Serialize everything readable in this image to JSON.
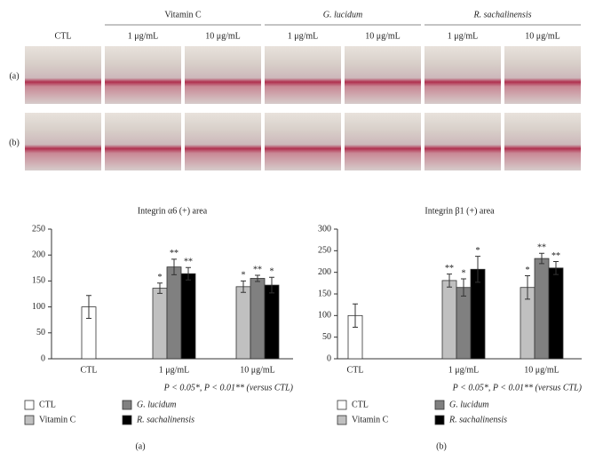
{
  "figure": {
    "groups": [
      "Vitamin C",
      "G. lucidum",
      "R. sachalinensis"
    ],
    "columns": [
      "CTL",
      "1 μg/mL",
      "10 μg/mL",
      "1 μg/mL",
      "10 μg/mL",
      "1 μg/mL",
      "10 μg/mL"
    ],
    "rows": [
      "(a)",
      "(b)"
    ]
  },
  "chart_data": [
    {
      "type": "bar",
      "title": "Integrin α6 (+) area",
      "panel": "(a)",
      "note": "P < 0.05*, P < 0.01** (versus CTL)",
      "categories": [
        "CTL",
        "1 μg/mL",
        "10 μg/mL"
      ],
      "ylim": [
        0,
        250
      ],
      "yticks": [
        0,
        50,
        100,
        150,
        200,
        250
      ],
      "series": [
        {
          "name": "CTL",
          "color": "#ffffff",
          "values": [
            100,
            null,
            null
          ],
          "errors": [
            22,
            null,
            null
          ],
          "stars": [
            null,
            null,
            null
          ]
        },
        {
          "name": "Vitamin C",
          "color": "#c0c0c0",
          "values": [
            null,
            136,
            139
          ],
          "errors": [
            null,
            10,
            11
          ],
          "stars": [
            null,
            "*",
            "*"
          ]
        },
        {
          "name": "G. lucidum",
          "color": "#808080",
          "values": [
            null,
            177,
            155
          ],
          "errors": [
            null,
            15,
            6
          ],
          "stars": [
            null,
            "**",
            "**"
          ]
        },
        {
          "name": "R. sachalinensis",
          "color": "#000000",
          "values": [
            null,
            164,
            142
          ],
          "errors": [
            null,
            12,
            15
          ],
          "stars": [
            null,
            "**",
            "*"
          ]
        }
      ]
    },
    {
      "type": "bar",
      "title": "Integrin β1 (+) area",
      "panel": "(b)",
      "note": "P < 0.05*, P < 0.01** (versus CTL)",
      "categories": [
        "CTL",
        "1 μg/mL",
        "10 μg/mL"
      ],
      "ylim": [
        0,
        300
      ],
      "yticks": [
        0,
        50,
        100,
        150,
        200,
        250,
        300
      ],
      "series": [
        {
          "name": "CTL",
          "color": "#ffffff",
          "values": [
            100,
            null,
            null
          ],
          "errors": [
            27,
            null,
            null
          ],
          "stars": [
            null,
            null,
            null
          ]
        },
        {
          "name": "Vitamin C",
          "color": "#c0c0c0",
          "values": [
            null,
            181,
            165
          ],
          "errors": [
            null,
            15,
            27
          ],
          "stars": [
            null,
            "**",
            "*"
          ]
        },
        {
          "name": "G. lucidum",
          "color": "#808080",
          "values": [
            null,
            165,
            232
          ],
          "errors": [
            null,
            20,
            12
          ],
          "stars": [
            null,
            "*",
            "**"
          ]
        },
        {
          "name": "R. sachalinensis",
          "color": "#000000",
          "values": [
            null,
            207,
            210
          ],
          "errors": [
            null,
            30,
            15
          ],
          "stars": [
            null,
            "*",
            "**"
          ]
        }
      ]
    }
  ]
}
